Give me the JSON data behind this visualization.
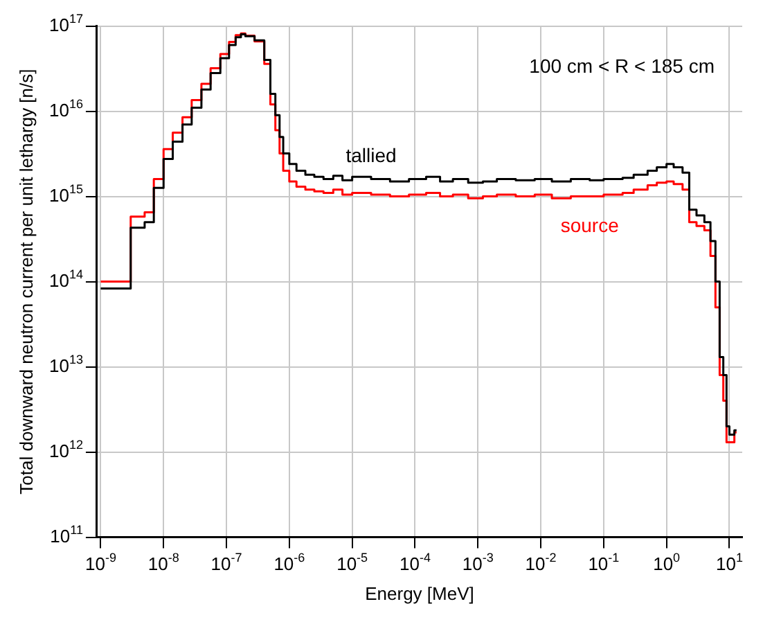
{
  "chart_data": {
    "type": "step",
    "xlabel": "Energy [MeV]",
    "ylabel": "Total downward neutron current per unit lethargy [n/s]",
    "annotations": [
      "100 cm < R < 185 cm"
    ],
    "log": "xy",
    "grid": true,
    "legend": false,
    "marker": "none",
    "line_style": "solid",
    "xlim": [
      8.7e-10,
      16
    ],
    "ylim": [
      100000000000.0,
      1e+17
    ],
    "xticks": [
      {
        "value": 1e-09,
        "label": "10$^{-9}$"
      },
      {
        "value": 1e-08,
        "label": "10$^{-8}$"
      },
      {
        "value": 1e-07,
        "label": "10$^{-7}$"
      },
      {
        "value": 1e-06,
        "label": "10$^{-6}$"
      },
      {
        "value": 1e-05,
        "label": "10$^{-5}$"
      },
      {
        "value": 0.0001,
        "label": "10$^{-4}$"
      },
      {
        "value": 0.001,
        "label": "10$^{-3}$"
      },
      {
        "value": 0.01,
        "label": "10$^{-2}$"
      },
      {
        "value": 0.1,
        "label": "10$^{-1}$"
      },
      {
        "value": 1,
        "label": "10$^{0}$"
      },
      {
        "value": 10,
        "label": "10$^{1}$"
      }
    ],
    "yticks": [
      {
        "value": 100000000000.0,
        "label": "10$^{11}$"
      },
      {
        "value": 1000000000000.0,
        "label": "10$^{12}$"
      },
      {
        "value": 10000000000000.0,
        "label": "10$^{13}$"
      },
      {
        "value": 100000000000000.0,
        "label": "10$^{14}$"
      },
      {
        "value": 1000000000000000.0,
        "label": "10$^{15}$"
      },
      {
        "value": 1e+16,
        "label": "10$^{16}$"
      },
      {
        "value": 1e+17,
        "label": "10$^{17}$"
      }
    ],
    "series": [
      {
        "name": "tallied",
        "color": "#000000",
        "x": [
          1e-09,
          3e-09,
          5e-09,
          7e-09,
          1e-08,
          1.4e-08,
          2e-08,
          2.8e-08,
          4e-08,
          5.6e-08,
          8e-08,
          1.1e-07,
          1.4e-07,
          1.7e-07,
          2e-07,
          2.8e-07,
          4e-07,
          5e-07,
          6e-07,
          7e-07,
          8e-07,
          1e-06,
          1.3e-06,
          1.8e-06,
          2.5e-06,
          3.5e-06,
          5e-06,
          7e-06,
          1e-05,
          2e-05,
          4e-05,
          8e-05,
          0.00015,
          0.00025,
          0.0004,
          0.0007,
          0.0012,
          0.002,
          0.004,
          0.008,
          0.015,
          0.03,
          0.06,
          0.1,
          0.2,
          0.3,
          0.5,
          0.7,
          1,
          1.3,
          1.8,
          2.3,
          3,
          4,
          5,
          6,
          7,
          8,
          9,
          10,
          12,
          13
        ],
        "values": [
          83000000000000.0,
          430000000000000.0,
          500000000000000.0,
          1260000000000000.0,
          2750000000000000.0,
          4400000000000000.0,
          7000000000000000.0,
          1.1e+16,
          1.8e+16,
          2.8e+16,
          4.2e+16,
          6e+16,
          7.4e+16,
          8e+16,
          7.6e+16,
          6.8e+16,
          4e+16,
          1.6e+16,
          9000000000000000.0,
          5000000000000000.0,
          3200000000000000.0,
          2400000000000000.0,
          2000000000000000.0,
          1800000000000000.0,
          1700000000000000.0,
          1600000000000000.0,
          1750000000000000.0,
          1550000000000000.0,
          1700000000000000.0,
          1600000000000000.0,
          1500000000000000.0,
          1600000000000000.0,
          1700000000000000.0,
          1500000000000000.0,
          1600000000000000.0,
          1450000000000000.0,
          1500000000000000.0,
          1600000000000000.0,
          1550000000000000.0,
          1600000000000000.0,
          1500000000000000.0,
          1600000000000000.0,
          1550000000000000.0,
          1600000000000000.0,
          1650000000000000.0,
          1800000000000000.0,
          2000000000000000.0,
          2200000000000000.0,
          2400000000000000.0,
          2200000000000000.0,
          1900000000000000.0,
          700000000000000.0,
          600000000000000.0,
          500000000000000.0,
          300000000000000.0,
          100000000000000.0,
          13000000000000.0,
          8000000000000.0,
          2000000000000.0,
          1600000000000.0,
          1800000000000.0,
          1800000000000.0
        ]
      },
      {
        "name": "source",
        "color": "#ff0000",
        "x": [
          1e-09,
          3e-09,
          5e-09,
          7e-09,
          1e-08,
          1.4e-08,
          2e-08,
          2.8e-08,
          4e-08,
          5.6e-08,
          8e-08,
          1.1e-07,
          1.4e-07,
          1.7e-07,
          2e-07,
          2.8e-07,
          4e-07,
          5e-07,
          6e-07,
          7e-07,
          8e-07,
          1e-06,
          1.3e-06,
          1.8e-06,
          2.5e-06,
          3.5e-06,
          5e-06,
          7e-06,
          1e-05,
          2e-05,
          4e-05,
          8e-05,
          0.00015,
          0.00025,
          0.0004,
          0.0007,
          0.0012,
          0.002,
          0.004,
          0.008,
          0.015,
          0.03,
          0.06,
          0.1,
          0.2,
          0.3,
          0.5,
          0.7,
          1,
          1.3,
          1.8,
          2.3,
          3,
          4,
          5,
          6,
          7,
          8,
          9,
          10,
          12,
          13
        ],
        "values": [
          100000000000000.0,
          580000000000000.0,
          650000000000000.0,
          1600000000000000.0,
          3600000000000000.0,
          5600000000000000.0,
          8500000000000000.0,
          1.35e+16,
          2.1e+16,
          3.2e+16,
          4.7e+16,
          6.5e+16,
          7.8e+16,
          8.2e+16,
          7.7e+16,
          6.6e+16,
          3.6e+16,
          1.2e+16,
          6000000000000000.0,
          3200000000000000.0,
          2000000000000000.0,
          1500000000000000.0,
          1300000000000000.0,
          1200000000000000.0,
          1150000000000000.0,
          1100000000000000.0,
          1200000000000000.0,
          1050000000000000.0,
          1100000000000000.0,
          1050000000000000.0,
          1000000000000000.0,
          1050000000000000.0,
          1100000000000000.0,
          1000000000000000.0,
          1050000000000000.0,
          950000000000000.0,
          1000000000000000.0,
          1050000000000000.0,
          1000000000000000.0,
          1050000000000000.0,
          950000000000000.0,
          1000000000000000.0,
          1000000000000000.0,
          1050000000000000.0,
          1100000000000000.0,
          1200000000000000.0,
          1350000000000000.0,
          1450000000000000.0,
          1500000000000000.0,
          1400000000000000.0,
          1200000000000000.0,
          500000000000000.0,
          450000000000000.0,
          400000000000000.0,
          200000000000000.0,
          50000000000000.0,
          8000000000000.0,
          4000000000000.0,
          1300000000000.0,
          1300000000000.0,
          1700000000000.0,
          1700000000000.0
        ]
      }
    ]
  }
}
